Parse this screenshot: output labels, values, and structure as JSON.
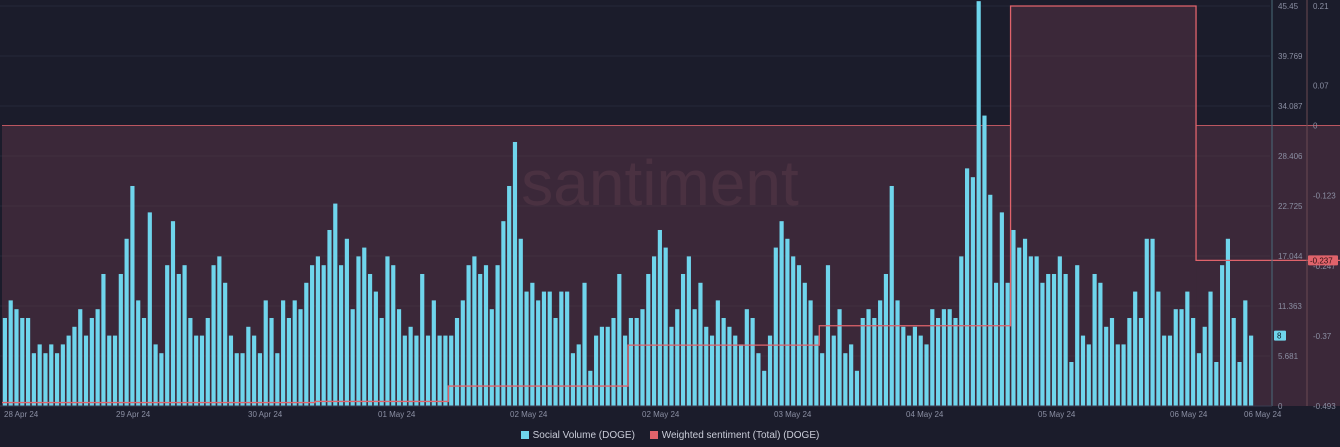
{
  "watermark": "santiment",
  "colors": {
    "background": "#1b1c2b",
    "volume": "#6fd5ec",
    "sentiment": "#e0636b",
    "grid": "#262838",
    "axis_text": "#8b8fa3"
  },
  "legend": [
    {
      "label": "Social Volume (DOGE)",
      "color": "#6fd5ec"
    },
    {
      "label": "Weighted sentiment (Total) (DOGE)",
      "color": "#e0636b"
    }
  ],
  "current_values": {
    "volume": "8",
    "sentiment": "-0.237"
  },
  "chart_data": {
    "type": "bar",
    "x_tick_labels": [
      "28 Apr 24",
      "29 Apr 24",
      "30 Apr 24",
      "01 May 24",
      "02 May 24",
      "02 May 24",
      "03 May 24",
      "04 May 24",
      "05 May 24",
      "06 May 24",
      "06 May 24"
    ],
    "y_left_ticks": [
      "45.45",
      "39.769",
      "34.087",
      "28.406",
      "22.725",
      "17.044",
      "11.363",
      "5.681",
      "0"
    ],
    "y_right_ticks": [
      "0.21",
      "0.07",
      "0",
      "-0.123",
      "-0.247",
      "-0.37",
      "-0.493"
    ],
    "ylim_left": [
      0,
      45.45
    ],
    "ylim_right": [
      -0.493,
      0.21
    ],
    "series": [
      {
        "name": "Social Volume (DOGE)",
        "axis": "left",
        "values": [
          10,
          12,
          11,
          10,
          10,
          6,
          7,
          6,
          7,
          6,
          7,
          8,
          9,
          11,
          8,
          10,
          11,
          15,
          8,
          8,
          15,
          19,
          25,
          12,
          10,
          22,
          7,
          6,
          16,
          21,
          15,
          16,
          10,
          8,
          8,
          10,
          16,
          17,
          14,
          8,
          6,
          6,
          9,
          8,
          6,
          12,
          10,
          6,
          12,
          10,
          12,
          11,
          14,
          16,
          17,
          16,
          20,
          23,
          16,
          19,
          11,
          17,
          18,
          15,
          13,
          10,
          17,
          16,
          11,
          8,
          9,
          8,
          15,
          8,
          12,
          8,
          8,
          8,
          10,
          12,
          16,
          17,
          15,
          16,
          11,
          16,
          21,
          25,
          30,
          19,
          13,
          14,
          12,
          13,
          13,
          10,
          13,
          13,
          6,
          7,
          14,
          4,
          8,
          9,
          9,
          10,
          15,
          8,
          10,
          10,
          11,
          15,
          17,
          20,
          18,
          9,
          11,
          15,
          17,
          11,
          14,
          9,
          8,
          12,
          10,
          9,
          8,
          7,
          11,
          10,
          6,
          4,
          8,
          18,
          21,
          19,
          17,
          16,
          14,
          12,
          8,
          6,
          16,
          8,
          11,
          6,
          7,
          4,
          10,
          11,
          10,
          12,
          15,
          25,
          12,
          9,
          8,
          9,
          8,
          7,
          11,
          10,
          11,
          11,
          10,
          17,
          27,
          26,
          46,
          33,
          24,
          14,
          22,
          14,
          20,
          18,
          19,
          17,
          17,
          14,
          15,
          15,
          17,
          15,
          5,
          16,
          8,
          7,
          15,
          14,
          9,
          10,
          7,
          7,
          10,
          13,
          10,
          19,
          19,
          13,
          8,
          8,
          11,
          11,
          13,
          10,
          6,
          9,
          13,
          5,
          16,
          19,
          10,
          5,
          12,
          8
        ]
      },
      {
        "name": "Weighted sentiment (Total) (DOGE)",
        "axis": "right",
        "steps": [
          {
            "from": 0,
            "to": 54,
            "value": -0.487
          },
          {
            "from": 54,
            "to": 77,
            "value": -0.485
          },
          {
            "from": 77,
            "to": 108,
            "value": -0.458
          },
          {
            "from": 108,
            "to": 141,
            "value": -0.386
          },
          {
            "from": 141,
            "to": 174,
            "value": -0.352
          },
          {
            "from": 174,
            "to": 206,
            "value": 0.21
          },
          {
            "from": 206,
            "to": 239,
            "value": -0.237
          }
        ]
      }
    ],
    "bands": [
      {
        "from": 0,
        "to": 174,
        "value": 0
      },
      {
        "from": 174,
        "to": 206,
        "value": 0.21
      },
      {
        "from": 206,
        "to": 239,
        "value": 0
      }
    ]
  }
}
